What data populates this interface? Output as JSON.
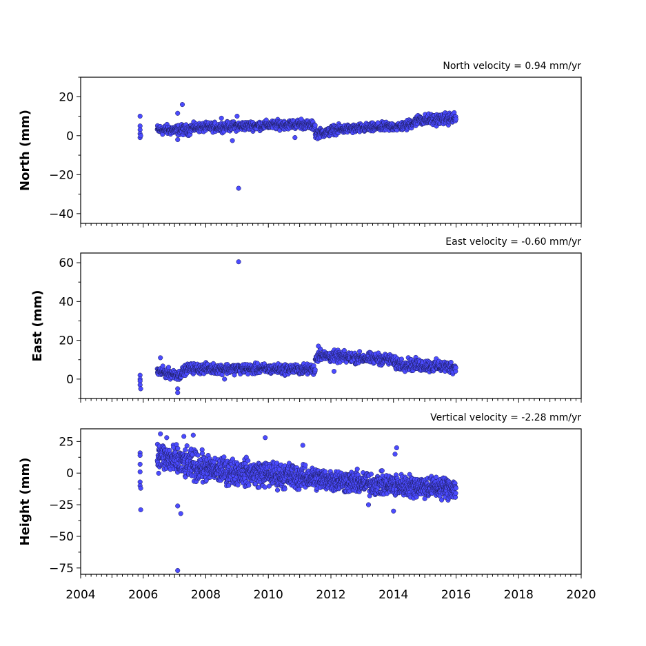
{
  "chart_data": [
    {
      "type": "scatter",
      "title": "North velocity = 0.94 mm/yr",
      "xlabel": "",
      "ylabel": "North (mm)",
      "xlim": [
        2004,
        2020
      ],
      "ylim": [
        -45,
        30
      ],
      "yticks": [
        20,
        0,
        -20,
        -40
      ],
      "ytick_labels": [
        "20",
        "0",
        "−20",
        "−40"
      ],
      "marker_color": "#4b4bff",
      "series": [
        {
          "segments": [
            {
              "t0": 2006.45,
              "t1": 2007.5,
              "v0": 3,
              "v1": 3,
              "spread": 1.8
            },
            {
              "t0": 2007.5,
              "t1": 2011.0,
              "v0": 4,
              "v1": 6,
              "spread": 1.6
            },
            {
              "t0": 2011.0,
              "t1": 2011.5,
              "v0": 6,
              "v1": 5,
              "spread": 1.6
            },
            {
              "t0": 2011.5,
              "t1": 2012.0,
              "v0": 1,
              "v1": 2,
              "spread": 1.6
            },
            {
              "t0": 2012.0,
              "t1": 2014.4,
              "v0": 3,
              "v1": 5,
              "spread": 1.6
            },
            {
              "t0": 2014.4,
              "t1": 2014.9,
              "v0": 5,
              "v1": 9,
              "spread": 1.8
            },
            {
              "t0": 2014.9,
              "t1": 2016.0,
              "v0": 8,
              "v1": 9,
              "spread": 2.0
            }
          ],
          "extra_points": [
            {
              "x": 2005.9,
              "y": 10
            },
            {
              "x": 2005.9,
              "y": 5
            },
            {
              "x": 2005.9,
              "y": 3
            },
            {
              "x": 2005.9,
              "y": 1
            },
            {
              "x": 2005.9,
              "y": -1
            },
            {
              "x": 2005.92,
              "y": 0
            },
            {
              "x": 2007.1,
              "y": 11.5
            },
            {
              "x": 2007.25,
              "y": 16
            },
            {
              "x": 2007.1,
              "y": -2
            },
            {
              "x": 2008.85,
              "y": -2.5
            },
            {
              "x": 2009.0,
              "y": 10
            },
            {
              "x": 2009.05,
              "y": -27
            },
            {
              "x": 2010.85,
              "y": -1
            },
            {
              "x": 2011.05,
              "y": 8.5
            },
            {
              "x": 2008.5,
              "y": 9
            }
          ]
        }
      ]
    },
    {
      "type": "scatter",
      "title": "East velocity = -0.60 mm/yr",
      "xlabel": "",
      "ylabel": "East (mm)",
      "xlim": [
        2004,
        2020
      ],
      "ylim": [
        -10,
        65
      ],
      "yticks": [
        60,
        40,
        20,
        0
      ],
      "ytick_labels": [
        "60",
        "40",
        "20",
        "0"
      ],
      "marker_color": "#4b4bff",
      "series": [
        {
          "segments": [
            {
              "t0": 2006.45,
              "t1": 2007.2,
              "v0": 4,
              "v1": 2,
              "spread": 1.8
            },
            {
              "t0": 2007.2,
              "t1": 2007.45,
              "v0": 3,
              "v1": 6,
              "spread": 1.6
            },
            {
              "t0": 2007.45,
              "t1": 2011.5,
              "v0": 5.5,
              "v1": 5,
              "spread": 1.8
            },
            {
              "t0": 2011.5,
              "t1": 2011.7,
              "v0": 10,
              "v1": 14,
              "spread": 2.0
            },
            {
              "t0": 2011.7,
              "t1": 2014.0,
              "v0": 12,
              "v1": 10,
              "spread": 2.0
            },
            {
              "t0": 2014.0,
              "t1": 2016.0,
              "v0": 8,
              "v1": 6,
              "spread": 2.2
            }
          ],
          "extra_points": [
            {
              "x": 2005.9,
              "y": 2
            },
            {
              "x": 2005.9,
              "y": 0
            },
            {
              "x": 2005.9,
              "y": -1
            },
            {
              "x": 2005.9,
              "y": -3
            },
            {
              "x": 2005.92,
              "y": -5
            },
            {
              "x": 2006.55,
              "y": 11
            },
            {
              "x": 2007.1,
              "y": -5
            },
            {
              "x": 2007.1,
              "y": -7
            },
            {
              "x": 2008.6,
              "y": 0
            },
            {
              "x": 2009.05,
              "y": 60.5
            },
            {
              "x": 2011.6,
              "y": 17
            },
            {
              "x": 2012.1,
              "y": 4
            }
          ]
        }
      ]
    },
    {
      "type": "scatter",
      "title": "Vertical velocity = -2.28 mm/yr",
      "xlabel": "",
      "ylabel": "Height (mm)",
      "xlim": [
        2004,
        2020
      ],
      "ylim": [
        -80,
        35
      ],
      "yticks": [
        25,
        0,
        -25,
        -50,
        -75
      ],
      "ytick_labels": [
        "25",
        "0",
        "−25",
        "−50",
        "−75"
      ],
      "xticks": [
        2004,
        2006,
        2008,
        2010,
        2012,
        2014,
        2016,
        2018,
        2020
      ],
      "xtick_labels": [
        "2004",
        "2006",
        "2008",
        "2010",
        "2012",
        "2014",
        "2016",
        "2018",
        "2020"
      ],
      "marker_color": "#4b4bff",
      "series": [
        {
          "segments": [
            {
              "t0": 2006.45,
              "t1": 2007.2,
              "v0": 14,
              "v1": 8,
              "spread": 8
            },
            {
              "t0": 2007.2,
              "t1": 2008.0,
              "v0": 8,
              "v1": 4,
              "spread": 8
            },
            {
              "t0": 2008.0,
              "t1": 2011.0,
              "v0": 3,
              "v1": -3,
              "spread": 7
            },
            {
              "t0": 2011.0,
              "t1": 2013.5,
              "v0": -3,
              "v1": -9,
              "spread": 6
            },
            {
              "t0": 2013.5,
              "t1": 2016.0,
              "v0": -9,
              "v1": -12,
              "spread": 6
            }
          ],
          "extra_points": [
            {
              "x": 2005.9,
              "y": 16
            },
            {
              "x": 2005.9,
              "y": 14
            },
            {
              "x": 2005.9,
              "y": 7
            },
            {
              "x": 2005.9,
              "y": 1
            },
            {
              "x": 2005.9,
              "y": -7
            },
            {
              "x": 2005.9,
              "y": -10
            },
            {
              "x": 2005.92,
              "y": -12
            },
            {
              "x": 2005.92,
              "y": -29
            },
            {
              "x": 2006.55,
              "y": 31
            },
            {
              "x": 2006.75,
              "y": 28
            },
            {
              "x": 2007.6,
              "y": 30
            },
            {
              "x": 2007.3,
              "y": 29
            },
            {
              "x": 2009.9,
              "y": 28
            },
            {
              "x": 2011.1,
              "y": 22
            },
            {
              "x": 2007.1,
              "y": -26
            },
            {
              "x": 2007.2,
              "y": -32
            },
            {
              "x": 2007.1,
              "y": -77
            },
            {
              "x": 2014.1,
              "y": 20
            },
            {
              "x": 2014.05,
              "y": 15
            },
            {
              "x": 2013.2,
              "y": -25
            },
            {
              "x": 2014.0,
              "y": -30
            }
          ]
        }
      ]
    }
  ]
}
